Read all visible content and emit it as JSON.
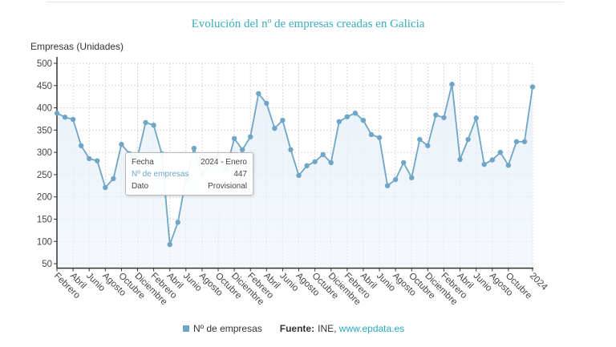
{
  "chart_data": {
    "type": "line",
    "title": "Evolución del nº de empresas creadas en Galicia",
    "ylabel": "Empresas (Unidades)",
    "xlabel": "",
    "ylim": [
      40,
      500
    ],
    "yticks": [
      50,
      100,
      150,
      200,
      250,
      300,
      350,
      400,
      450,
      500
    ],
    "grid": true,
    "area_fill": true,
    "series_color": "#6fa6c6",
    "title_color": "#3aaebf",
    "xtick_labels": [
      "Febrero",
      "Abril",
      "Junio",
      "Agosto",
      "Octubre",
      "Diciembre",
      "Febrero",
      "Abril",
      "Junio",
      "Agosto",
      "Octubre",
      "Diciembre",
      "Febrero",
      "Abril",
      "Junio",
      "Agosto",
      "Octubre",
      "Diciembre",
      "Febrero",
      "Abril",
      "Junio",
      "Agosto",
      "Octubre",
      "Diciembre",
      "Febrero",
      "Abril",
      "Junio",
      "Agosto",
      "Octubre",
      "2024"
    ],
    "series": [
      {
        "name": "Nº de empresas",
        "values": [
          388,
          379,
          374,
          315,
          286,
          281,
          221,
          241,
          318,
          297,
          290,
          367,
          361,
          297,
          93,
          143,
          239,
          309,
          250,
          285,
          290,
          262,
          331,
          306,
          335,
          432,
          410,
          354,
          372,
          306,
          248,
          270,
          279,
          295,
          277,
          369,
          380,
          388,
          372,
          340,
          333,
          225,
          239,
          277,
          243,
          329,
          315,
          384,
          378,
          453,
          284,
          329,
          377,
          273,
          283,
          300,
          271,
          324,
          324,
          447
        ]
      }
    ],
    "legend": {
      "placement": "bottom",
      "label": "Nº de empresas"
    }
  },
  "tooltip": {
    "rows": [
      {
        "label": "Fecha",
        "value": "2024 - Enero"
      },
      {
        "label": "Nº de empresas",
        "value": "447"
      },
      {
        "label": "Dato",
        "value": "Provisional"
      }
    ]
  },
  "source": {
    "label": "Fuente:",
    "text": "INE,",
    "link": "www.epdata.es"
  }
}
